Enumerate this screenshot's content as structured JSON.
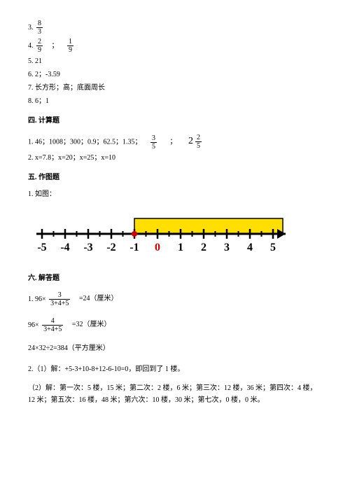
{
  "a3": {
    "p": "3.",
    "n": "8",
    "d": "3"
  },
  "a4": {
    "p": "4.",
    "n1": "2",
    "d1": "9",
    "sep": "；",
    "n2": "1",
    "d2": "9"
  },
  "a5": "5. 21",
  "a6": "6. 2；-3.59",
  "a7": "7. 长方形；高；底面周长",
  "a8": "8. 6；1",
  "sec4": "四. 计算题",
  "c1": {
    "p": "1. 46；1008；300；0.9；62.5；1.35；",
    "fn": "3",
    "fd": "5",
    "sep": "；",
    "mw": "2",
    "mn": "2",
    "md": "5"
  },
  "c2": "2. x=7.8；x=20；x=25；x=10",
  "sec5": "五. 作图题",
  "d1": "1. 如图：",
  "nl": {
    "ticks": [
      -5,
      -4,
      -3,
      -2,
      -1,
      0,
      1,
      2,
      3,
      4,
      5
    ],
    "highlight_start": -1,
    "highlight_end": 5,
    "zero_color": "#d00000",
    "text_color": "#000",
    "line_color": "#000",
    "hl_color": "#ffde00",
    "hl_border": "#000"
  },
  "sec6": "六. 解答题",
  "e1": {
    "p": "1. 96×",
    "fn": "3",
    "fd": "3+4+5",
    "eq": "=24（厘米）"
  },
  "e1b": {
    "p": "96×",
    "fn": "4",
    "fd": "3+4+5",
    "eq": "=32（厘米）"
  },
  "e1c": "24×32÷2=384（平方厘米）",
  "e2a": "2.（1）解：+5-3+10-8+12-6-10=0，即回到了 1 楼。",
  "e2b": "（2）解：第一次：5 楼，15 米；第二次：2 楼，6 米；第三次：12 楼，36 米；第四次：4 楼，12 米；第五次：16 楼，48 米；第六次：10 楼，30 米；第七次，0 楼，0 米。"
}
